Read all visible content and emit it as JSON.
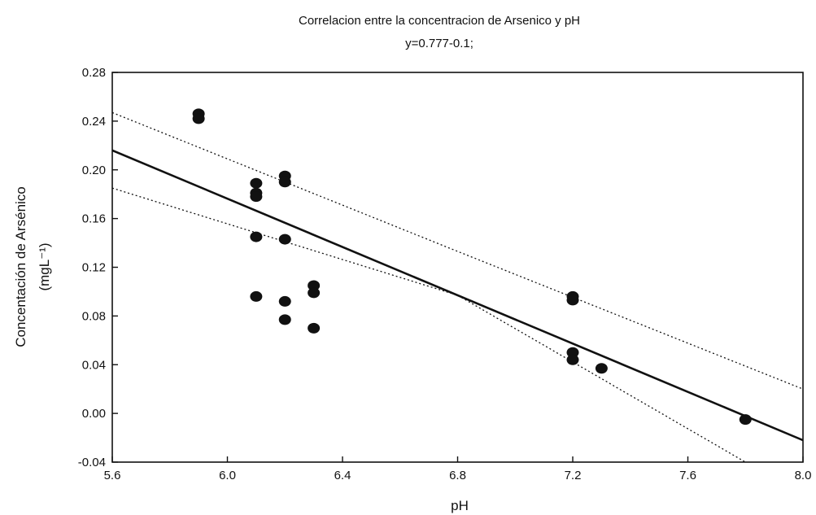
{
  "chart_data": {
    "type": "scatter",
    "title": "Correlacion entre la concentracion de Arsenico y pH",
    "subtitle": "y=0.777-0.1;",
    "xlabel": "pH",
    "ylabel_line1": "Concentación de Arsénico",
    "ylabel_line2": "(mgL⁻¹)",
    "xlim": [
      5.6,
      8.0
    ],
    "ylim": [
      -0.04,
      0.28
    ],
    "xticks": [
      5.6,
      6.0,
      6.4,
      6.8,
      7.2,
      7.6,
      8.0
    ],
    "xtick_labels": [
      "5.6",
      "6.0",
      "6.4",
      "6.8",
      "7.2",
      "7.6",
      "8.0"
    ],
    "yticks": [
      -0.04,
      0.0,
      0.04,
      0.08,
      0.12,
      0.16,
      0.2,
      0.24,
      0.28
    ],
    "ytick_labels": [
      "-0.04",
      "0.00",
      "0.04",
      "0.08",
      "0.12",
      "0.16",
      "0.20",
      "0.24",
      "0.28"
    ],
    "grid": false,
    "points": [
      {
        "x": 5.9,
        "y": 0.246
      },
      {
        "x": 5.9,
        "y": 0.242
      },
      {
        "x": 6.1,
        "y": 0.189
      },
      {
        "x": 6.1,
        "y": 0.181
      },
      {
        "x": 6.1,
        "y": 0.178
      },
      {
        "x": 6.1,
        "y": 0.145
      },
      {
        "x": 6.1,
        "y": 0.096
      },
      {
        "x": 6.2,
        "y": 0.195
      },
      {
        "x": 6.2,
        "y": 0.19
      },
      {
        "x": 6.2,
        "y": 0.143
      },
      {
        "x": 6.2,
        "y": 0.092
      },
      {
        "x": 6.2,
        "y": 0.077
      },
      {
        "x": 6.3,
        "y": 0.105
      },
      {
        "x": 6.3,
        "y": 0.099
      },
      {
        "x": 6.3,
        "y": 0.07
      },
      {
        "x": 7.2,
        "y": 0.096
      },
      {
        "x": 7.2,
        "y": 0.093
      },
      {
        "x": 7.2,
        "y": 0.05
      },
      {
        "x": 7.2,
        "y": 0.044
      },
      {
        "x": 7.3,
        "y": 0.037
      },
      {
        "x": 7.8,
        "y": -0.005
      }
    ],
    "regression_line": [
      {
        "x": 5.6,
        "y": 0.216
      },
      {
        "x": 8.0,
        "y": -0.022
      }
    ],
    "confidence_upper": [
      {
        "x": 5.6,
        "y": 0.247
      },
      {
        "x": 6.8,
        "y": 0.133
      },
      {
        "x": 8.0,
        "y": 0.02
      }
    ],
    "confidence_lower": [
      {
        "x": 5.6,
        "y": 0.185
      },
      {
        "x": 6.8,
        "y": 0.097
      },
      {
        "x": 7.8,
        "y": -0.04
      }
    ],
    "colors": {
      "marks": "#111111",
      "background": "#ffffff"
    }
  }
}
